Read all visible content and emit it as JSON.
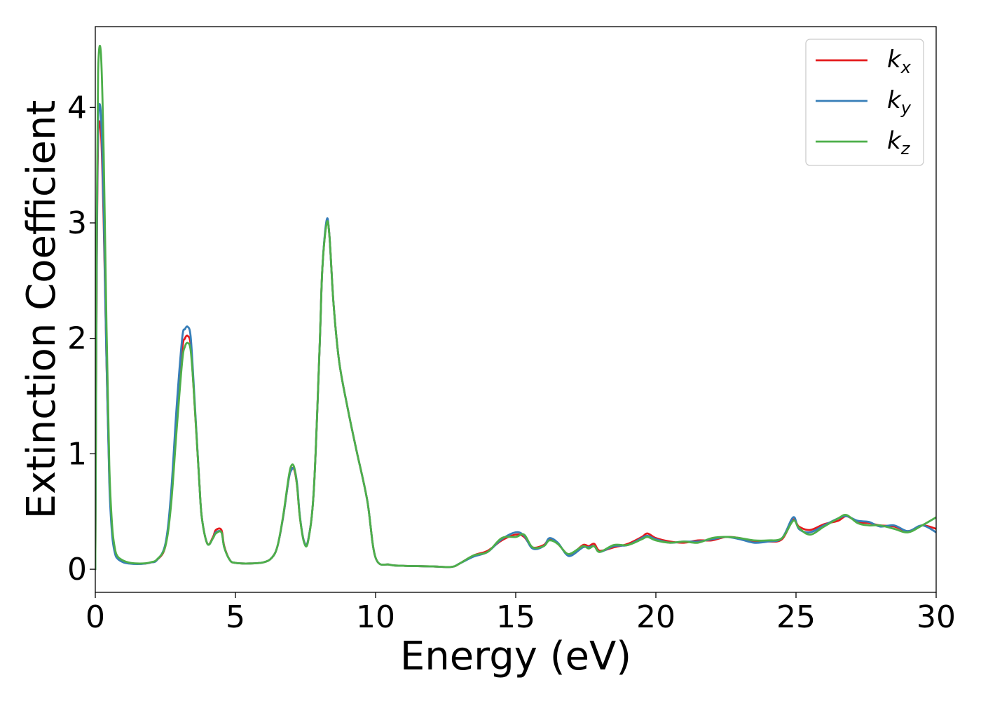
{
  "chart_data": {
    "type": "line",
    "title": "",
    "xlabel": "Energy (eV)",
    "ylabel": "Extinction Coefficient",
    "xlim": [
      0,
      30
    ],
    "ylim": [
      -0.2,
      4.7
    ],
    "xticks": [
      0,
      5,
      10,
      15,
      20,
      25,
      30
    ],
    "yticks": [
      0,
      1,
      2,
      3,
      4
    ],
    "grid": false,
    "legend_position": "top-right",
    "series": [
      {
        "name_base": "k",
        "name_sub": "x",
        "color": "#e41a1c",
        "x": [
          0,
          0.05,
          0.1,
          0.2,
          0.3,
          0.4,
          0.5,
          0.6,
          0.7,
          0.8,
          1.0,
          1.2,
          1.5,
          1.8,
          2.0,
          2.2,
          2.5,
          2.7,
          2.9,
          3.1,
          3.2,
          3.3,
          3.4,
          3.5,
          3.7,
          3.8,
          4.0,
          4.2,
          4.3,
          4.5,
          4.6,
          4.8,
          5.0,
          5.5,
          6.0,
          6.3,
          6.5,
          6.7,
          6.9,
          7.0,
          7.1,
          7.2,
          7.3,
          7.45,
          7.6,
          7.8,
          8.0,
          8.1,
          8.25,
          8.35,
          8.5,
          8.7,
          9.0,
          9.3,
          9.7,
          10.0,
          10.5,
          11,
          12,
          12.7,
          13.0,
          13.5,
          14.0,
          14.5,
          15.0,
          15.3,
          15.6,
          16.0,
          16.2,
          16.5,
          16.8,
          17.0,
          17.4,
          17.6,
          17.8,
          18.0,
          18.5,
          19.0,
          19.5,
          19.7,
          20.0,
          20.5,
          21.0,
          21.5,
          22.0,
          22.5,
          23.0,
          23.5,
          24.0,
          24.5,
          24.9,
          25.1,
          25.5,
          26.0,
          26.5,
          26.8,
          27.2,
          27.6,
          28.0,
          28.5,
          29.0,
          29.5,
          30.0
        ],
        "y": [
          0,
          2.5,
          3.7,
          3.8,
          3.0,
          1.8,
          0.8,
          0.35,
          0.17,
          0.1,
          0.07,
          0.055,
          0.048,
          0.05,
          0.06,
          0.08,
          0.2,
          0.6,
          1.3,
          1.9,
          2.0,
          2.02,
          1.95,
          1.6,
          0.8,
          0.45,
          0.22,
          0.28,
          0.34,
          0.34,
          0.2,
          0.08,
          0.055,
          0.05,
          0.06,
          0.1,
          0.2,
          0.45,
          0.78,
          0.87,
          0.86,
          0.72,
          0.45,
          0.24,
          0.26,
          0.7,
          1.9,
          2.6,
          3.0,
          2.9,
          2.3,
          1.8,
          1.4,
          1.05,
          0.6,
          0.1,
          0.04,
          0.03,
          0.025,
          0.02,
          0.05,
          0.12,
          0.16,
          0.25,
          0.3,
          0.28,
          0.19,
          0.21,
          0.26,
          0.22,
          0.14,
          0.13,
          0.21,
          0.2,
          0.22,
          0.16,
          0.19,
          0.22,
          0.28,
          0.31,
          0.27,
          0.24,
          0.23,
          0.25,
          0.25,
          0.28,
          0.27,
          0.24,
          0.24,
          0.26,
          0.43,
          0.37,
          0.34,
          0.39,
          0.42,
          0.46,
          0.41,
          0.4,
          0.38,
          0.37,
          0.33,
          0.38,
          0.35
        ]
      },
      {
        "name_base": "k",
        "name_sub": "y",
        "color": "#377eb8",
        "x": [
          0,
          0.05,
          0.1,
          0.2,
          0.3,
          0.4,
          0.5,
          0.6,
          0.7,
          0.8,
          1.0,
          1.2,
          1.5,
          1.8,
          2.0,
          2.2,
          2.5,
          2.7,
          2.9,
          3.1,
          3.2,
          3.3,
          3.4,
          3.5,
          3.7,
          3.8,
          4.0,
          4.2,
          4.3,
          4.5,
          4.6,
          4.8,
          5.0,
          5.5,
          6.0,
          6.3,
          6.5,
          6.7,
          6.9,
          7.0,
          7.1,
          7.2,
          7.3,
          7.45,
          7.6,
          7.8,
          8.0,
          8.1,
          8.25,
          8.35,
          8.5,
          8.7,
          9.0,
          9.3,
          9.7,
          10.0,
          10.5,
          11,
          12,
          12.7,
          13.0,
          13.5,
          14.0,
          14.5,
          15.0,
          15.3,
          15.6,
          16.0,
          16.2,
          16.5,
          16.8,
          17.0,
          17.4,
          17.6,
          17.8,
          18.0,
          18.5,
          19.0,
          19.5,
          19.7,
          20.0,
          20.5,
          21.0,
          21.5,
          22.0,
          22.5,
          23.0,
          23.5,
          24.0,
          24.5,
          24.9,
          25.1,
          25.5,
          26.0,
          26.5,
          26.8,
          27.2,
          27.6,
          28.0,
          28.5,
          29.0,
          29.5,
          30.0
        ],
        "y": [
          0,
          2.6,
          3.85,
          3.94,
          3.1,
          1.8,
          0.75,
          0.3,
          0.14,
          0.09,
          0.06,
          0.05,
          0.045,
          0.05,
          0.06,
          0.08,
          0.22,
          0.65,
          1.4,
          2.0,
          2.08,
          2.1,
          2.02,
          1.65,
          0.8,
          0.45,
          0.22,
          0.27,
          0.32,
          0.32,
          0.19,
          0.08,
          0.055,
          0.05,
          0.06,
          0.1,
          0.2,
          0.45,
          0.78,
          0.86,
          0.87,
          0.74,
          0.46,
          0.24,
          0.26,
          0.7,
          1.9,
          2.6,
          3.02,
          2.9,
          2.3,
          1.8,
          1.4,
          1.05,
          0.6,
          0.1,
          0.04,
          0.03,
          0.025,
          0.02,
          0.05,
          0.11,
          0.15,
          0.26,
          0.32,
          0.29,
          0.18,
          0.2,
          0.27,
          0.23,
          0.13,
          0.12,
          0.19,
          0.19,
          0.2,
          0.15,
          0.2,
          0.21,
          0.27,
          0.29,
          0.26,
          0.23,
          0.24,
          0.24,
          0.26,
          0.28,
          0.26,
          0.23,
          0.24,
          0.27,
          0.45,
          0.35,
          0.32,
          0.38,
          0.44,
          0.46,
          0.42,
          0.41,
          0.37,
          0.38,
          0.33,
          0.38,
          0.32
        ]
      },
      {
        "name_base": "k",
        "name_sub": "z",
        "color": "#4daf4a",
        "x": [
          0,
          0.05,
          0.1,
          0.2,
          0.3,
          0.4,
          0.5,
          0.6,
          0.7,
          0.8,
          1.0,
          1.2,
          1.5,
          1.8,
          2.0,
          2.2,
          2.5,
          2.7,
          2.9,
          3.1,
          3.2,
          3.3,
          3.4,
          3.5,
          3.7,
          3.8,
          4.0,
          4.2,
          4.3,
          4.5,
          4.6,
          4.8,
          5.0,
          5.5,
          6.0,
          6.3,
          6.5,
          6.7,
          6.9,
          7.0,
          7.1,
          7.2,
          7.3,
          7.45,
          7.6,
          7.8,
          8.0,
          8.1,
          8.25,
          8.35,
          8.5,
          8.7,
          9.0,
          9.3,
          9.7,
          10.0,
          10.5,
          11,
          12,
          12.7,
          13.0,
          13.5,
          14.0,
          14.5,
          15.0,
          15.3,
          15.6,
          16.0,
          16.2,
          16.5,
          16.8,
          17.0,
          17.4,
          17.6,
          17.8,
          18.0,
          18.5,
          19.0,
          19.5,
          19.7,
          20.0,
          20.5,
          21.0,
          21.5,
          22.0,
          22.5,
          23.0,
          23.5,
          24.0,
          24.5,
          24.9,
          25.1,
          25.5,
          26.0,
          26.5,
          26.8,
          27.2,
          27.6,
          28.0,
          28.5,
          29.0,
          29.5,
          30.0
        ],
        "y": [
          0,
          3.0,
          4.3,
          4.47,
          3.6,
          2.1,
          0.9,
          0.38,
          0.18,
          0.11,
          0.075,
          0.058,
          0.05,
          0.052,
          0.062,
          0.085,
          0.2,
          0.55,
          1.2,
          1.8,
          1.93,
          1.96,
          1.9,
          1.6,
          0.8,
          0.45,
          0.22,
          0.27,
          0.31,
          0.32,
          0.19,
          0.08,
          0.055,
          0.05,
          0.06,
          0.1,
          0.2,
          0.46,
          0.8,
          0.9,
          0.88,
          0.72,
          0.45,
          0.23,
          0.25,
          0.7,
          1.9,
          2.6,
          2.99,
          2.9,
          2.3,
          1.8,
          1.4,
          1.05,
          0.6,
          0.1,
          0.04,
          0.03,
          0.025,
          0.02,
          0.05,
          0.12,
          0.15,
          0.27,
          0.28,
          0.3,
          0.19,
          0.2,
          0.25,
          0.22,
          0.14,
          0.14,
          0.2,
          0.18,
          0.2,
          0.15,
          0.21,
          0.21,
          0.26,
          0.28,
          0.25,
          0.23,
          0.24,
          0.23,
          0.27,
          0.28,
          0.27,
          0.25,
          0.25,
          0.27,
          0.42,
          0.36,
          0.3,
          0.37,
          0.44,
          0.47,
          0.4,
          0.38,
          0.38,
          0.35,
          0.32,
          0.38,
          0.45
        ]
      }
    ]
  }
}
